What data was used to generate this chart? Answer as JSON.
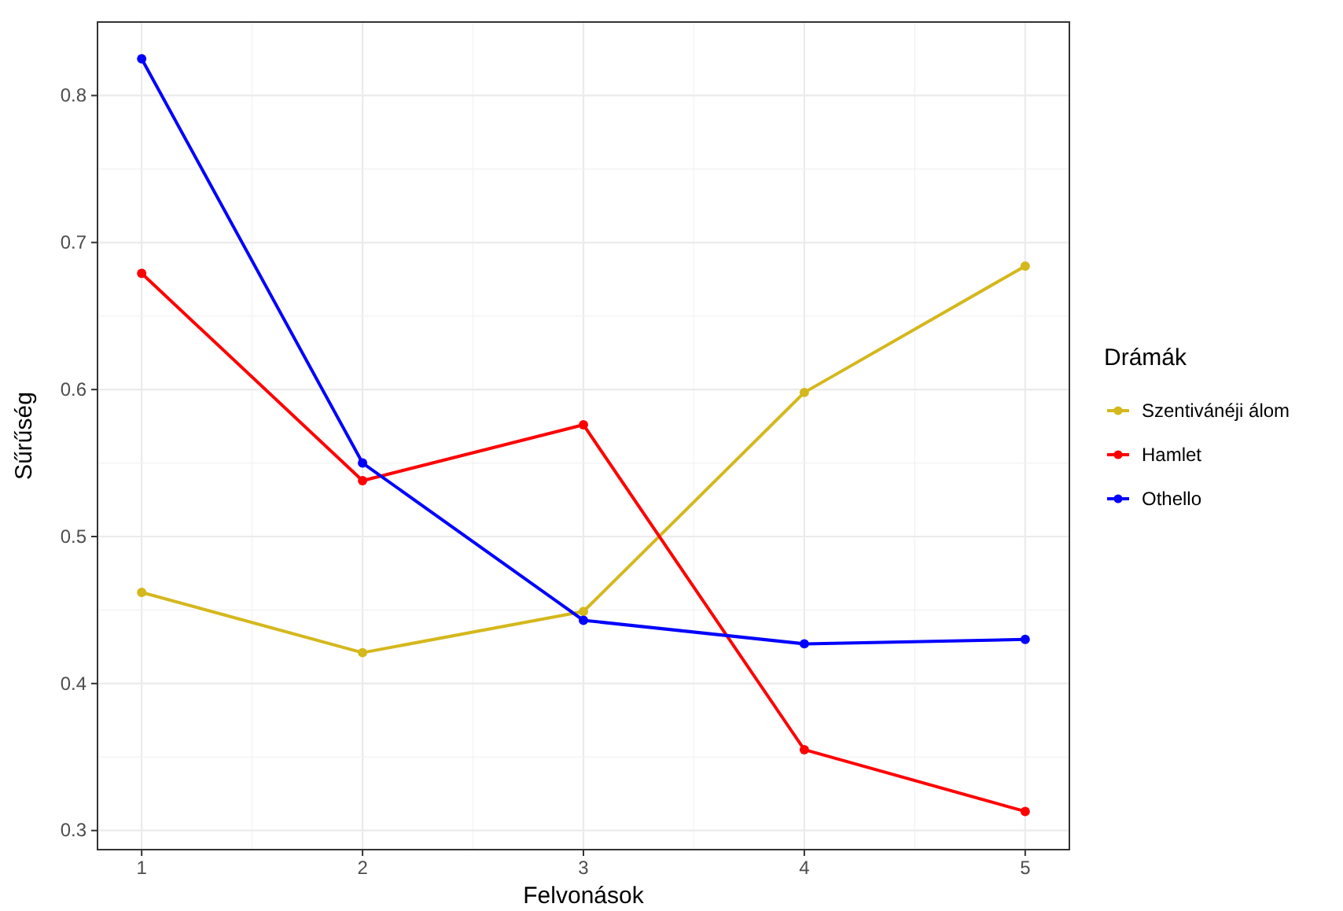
{
  "chart_data": {
    "type": "line",
    "xlabel": "Felvonások",
    "ylabel": "Sűrűség",
    "legend_title": "Drámák",
    "legend": "right",
    "grid": true,
    "marker": "circle",
    "line_style": "solid",
    "x": [
      1,
      2,
      3,
      4,
      5
    ],
    "xlim": [
      0.8,
      5.2
    ],
    "xticks": [
      1,
      2,
      3,
      4,
      5
    ],
    "ylim": [
      0.287,
      0.85
    ],
    "yticks": [
      0.3,
      0.4,
      0.5,
      0.6,
      0.7,
      0.8
    ],
    "series": [
      {
        "name": "Szentivánéji álom",
        "color": "#d4b81c",
        "values": [
          0.462,
          0.421,
          0.449,
          0.598,
          0.684
        ]
      },
      {
        "name": "Hamlet",
        "color": "#ff0000",
        "values": [
          0.679,
          0.538,
          0.576,
          0.355,
          0.313
        ]
      },
      {
        "name": "Othello",
        "color": "#0000ff",
        "values": [
          0.825,
          0.55,
          0.443,
          0.427,
          0.43
        ]
      }
    ]
  }
}
